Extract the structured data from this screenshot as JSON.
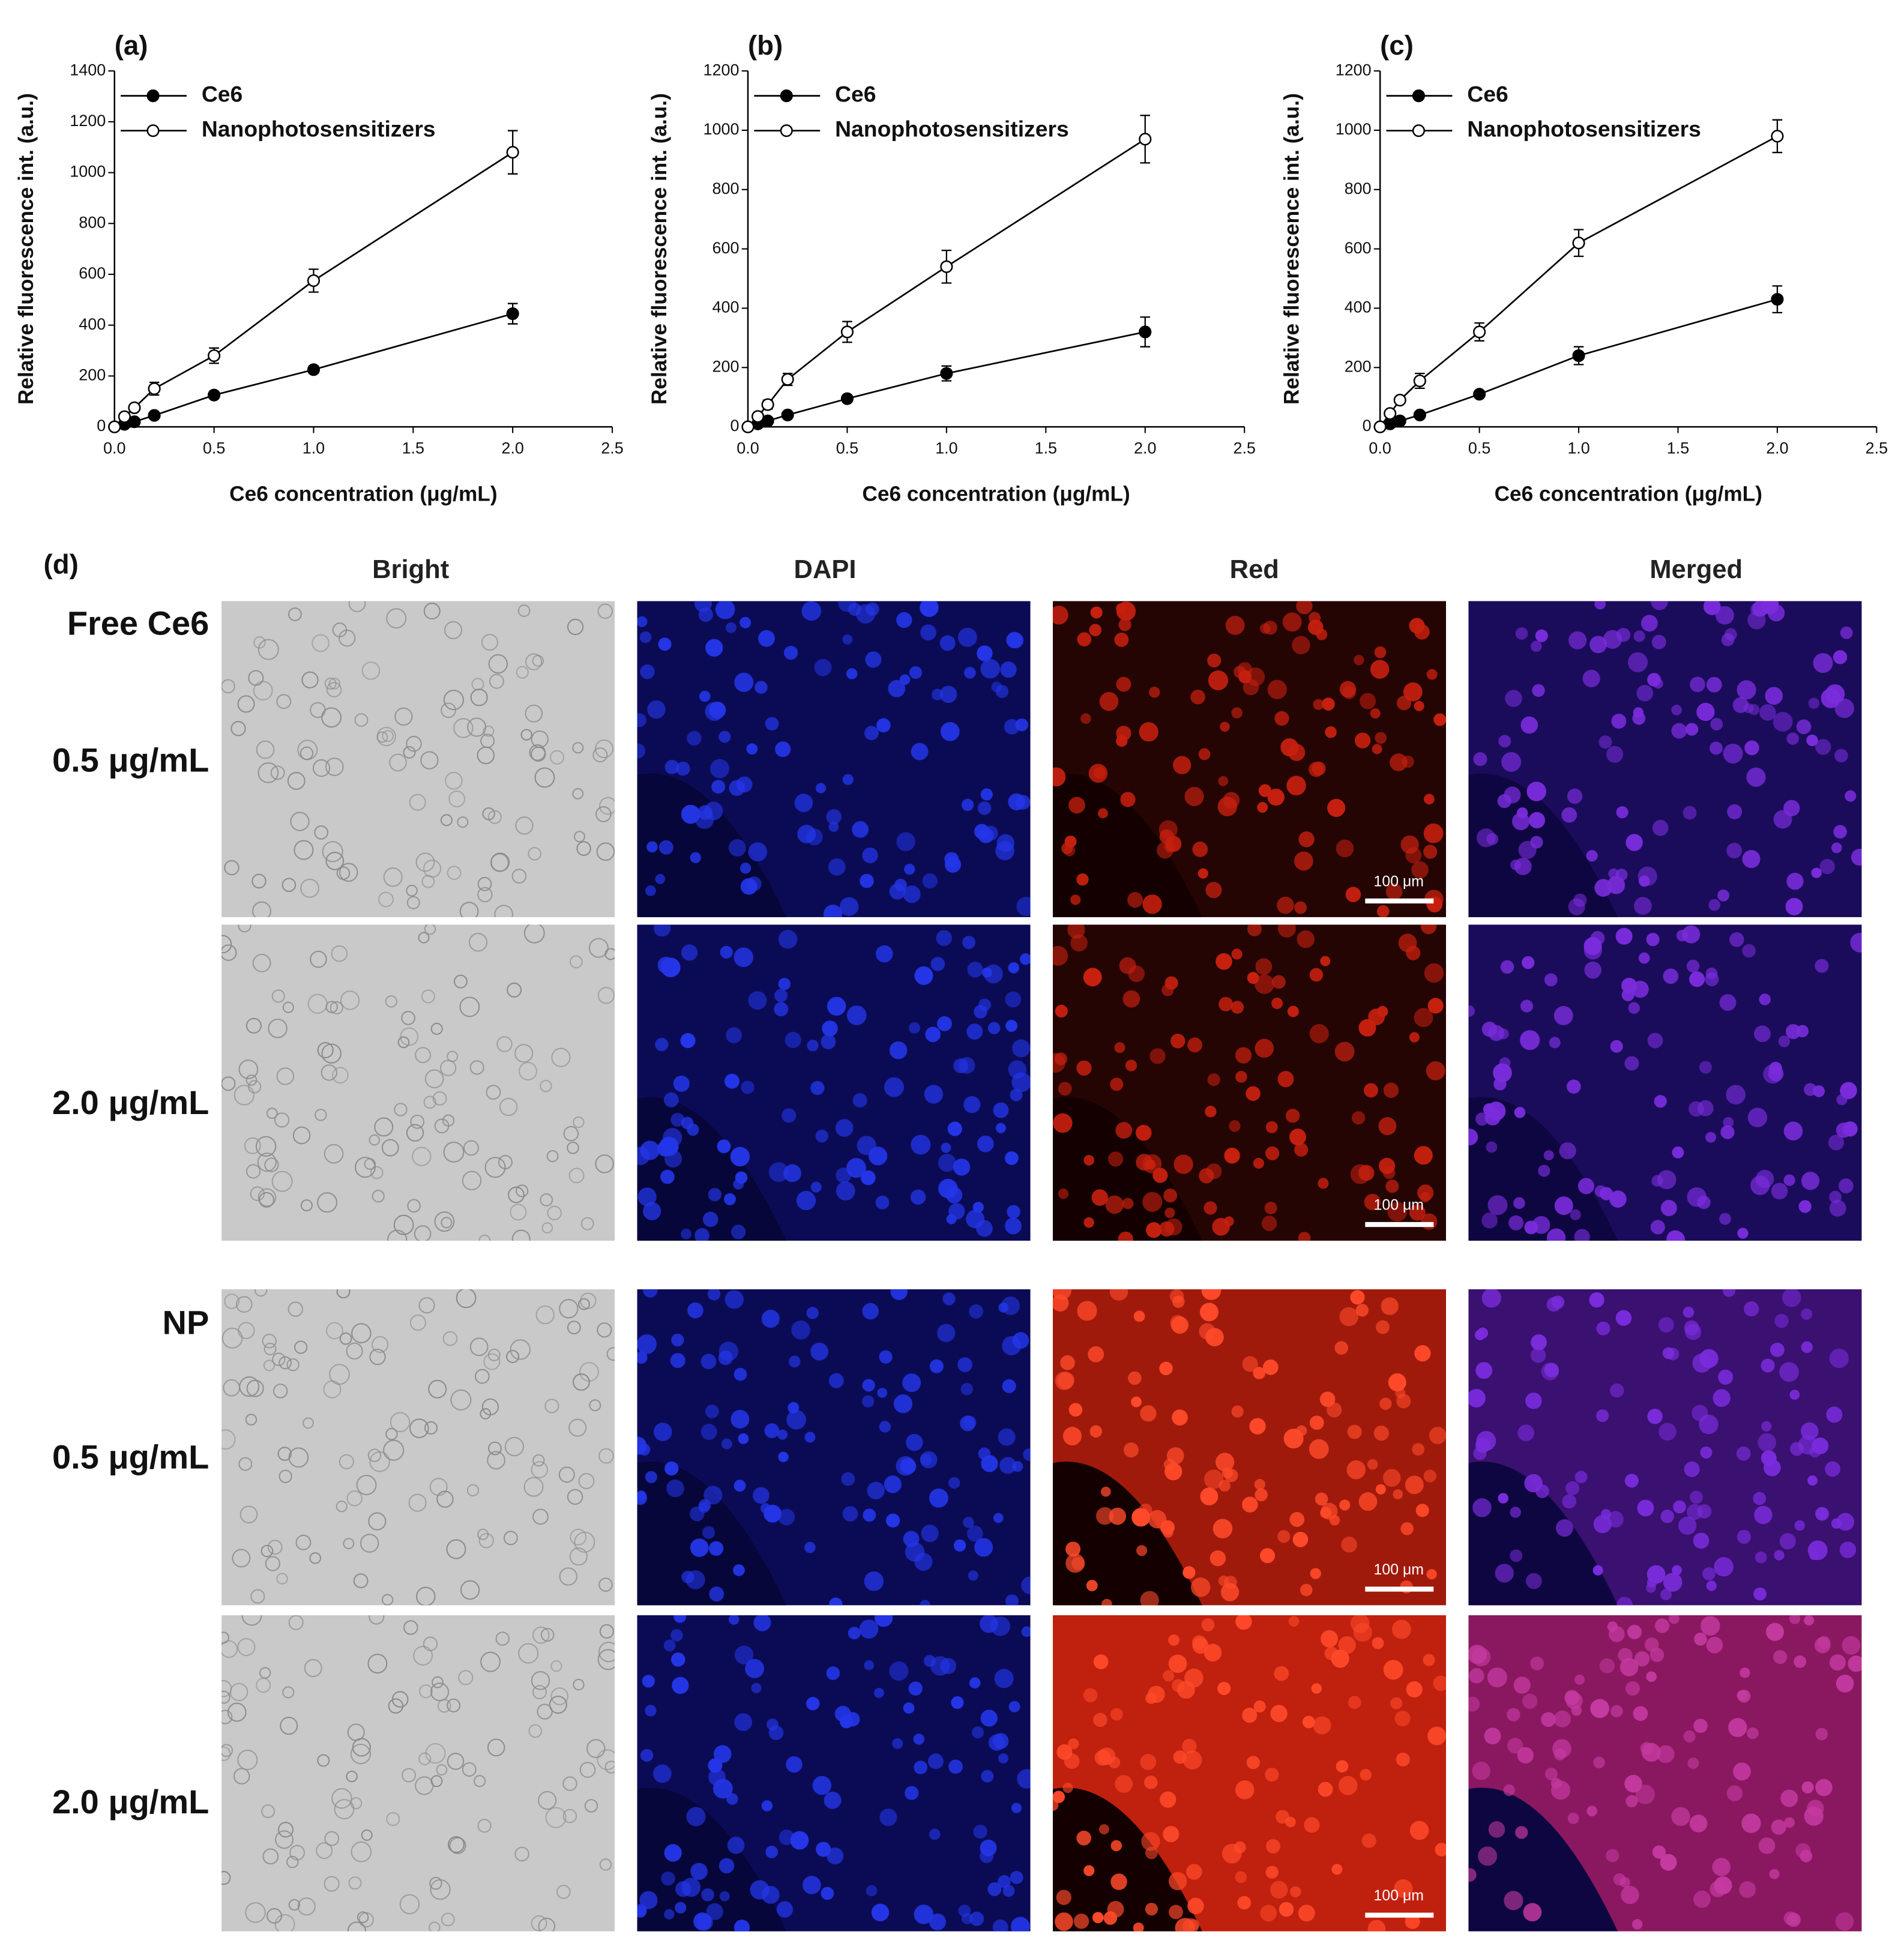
{
  "chart_data": [
    {
      "type": "line",
      "title": "(a)",
      "xlabel": "Ce6 concentration (μg/mL)",
      "ylabel": "Relative fluorescence int. (a.u.)",
      "legend": "upper left",
      "x": [
        0,
        0.05,
        0.1,
        0.2,
        0.5,
        1,
        2
      ],
      "xlim": [
        0,
        2.5
      ],
      "xticks": [
        {
          "value": 0,
          "label": "0.0"
        },
        0.5,
        {
          "value": 1,
          "label": "1.0"
        },
        1.5,
        {
          "value": 2,
          "label": "2.0"
        },
        2.5
      ],
      "ylim": [
        0,
        1400
      ],
      "yticks": [
        0,
        200,
        400,
        600,
        800,
        1000,
        1200,
        1400
      ],
      "series": [
        {
          "name": "Ce6",
          "color": "#000000",
          "marker": "filled",
          "values": [
            0,
            10,
            20,
            45,
            125,
            225,
            445
          ],
          "errors": [
            0,
            5,
            5,
            8,
            10,
            15,
            40
          ]
        },
        {
          "name": "Nanophotosensitizers",
          "color": "#000000",
          "marker": "open",
          "values": [
            0,
            40,
            75,
            150,
            280,
            575,
            1080
          ],
          "errors": [
            0,
            10,
            12,
            25,
            30,
            45,
            85
          ]
        }
      ]
    },
    {
      "type": "line",
      "title": "(b)",
      "xlabel": "Ce6 concentration (μg/mL)",
      "ylabel": "Relative fluorescence int. (a.u.)",
      "legend": "upper left",
      "x": [
        0,
        0.05,
        0.1,
        0.2,
        0.5,
        1,
        2
      ],
      "xlim": [
        0,
        2.5
      ],
      "xticks": [
        {
          "value": 0,
          "label": "0.0"
        },
        0.5,
        {
          "value": 1,
          "label": "1.0"
        },
        1.5,
        {
          "value": 2,
          "label": "2.0"
        },
        2.5
      ],
      "ylim": [
        0,
        1200
      ],
      "yticks": [
        0,
        200,
        400,
        600,
        800,
        1000,
        1200
      ],
      "series": [
        {
          "name": "Ce6",
          "color": "#000000",
          "marker": "filled",
          "values": [
            0,
            10,
            20,
            40,
            95,
            180,
            320
          ],
          "errors": [
            0,
            5,
            5,
            8,
            10,
            25,
            50
          ]
        },
        {
          "name": "Nanophotosensitizers",
          "color": "#000000",
          "marker": "open",
          "values": [
            0,
            35,
            75,
            160,
            320,
            540,
            970
          ],
          "errors": [
            0,
            10,
            15,
            20,
            35,
            55,
            80
          ]
        }
      ]
    },
    {
      "type": "line",
      "title": "(c)",
      "xlabel": "Ce6 concentration (μg/mL)",
      "ylabel": "Relative fluorescence int. (a.u.)",
      "legend": "upper left",
      "x": [
        0,
        0.05,
        0.1,
        0.2,
        0.5,
        1,
        2
      ],
      "xlim": [
        0,
        2.5
      ],
      "xticks": [
        {
          "value": 0,
          "label": "0.0"
        },
        0.5,
        {
          "value": 1,
          "label": "1.0"
        },
        1.5,
        {
          "value": 2,
          "label": "2.0"
        },
        2.5
      ],
      "ylim": [
        0,
        1200
      ],
      "yticks": [
        0,
        200,
        400,
        600,
        800,
        1000,
        1200
      ],
      "series": [
        {
          "name": "Ce6",
          "color": "#000000",
          "marker": "filled",
          "values": [
            0,
            10,
            20,
            40,
            110,
            240,
            430
          ],
          "errors": [
            0,
            5,
            5,
            8,
            10,
            30,
            45
          ]
        },
        {
          "name": "Nanophotosensitizers",
          "color": "#000000",
          "marker": "open",
          "values": [
            0,
            45,
            90,
            155,
            320,
            620,
            980
          ],
          "errors": [
            0,
            10,
            10,
            25,
            30,
            45,
            55
          ]
        }
      ]
    }
  ],
  "panel_d": {
    "label": "(d)",
    "columns": [
      "Bright",
      "DAPI",
      "Red",
      "Merged"
    ],
    "groups": [
      {
        "label": "Free Ce6",
        "rows": [
          "0.5 μg/mL",
          "2.0 μg/mL"
        ]
      },
      {
        "label": "NP",
        "rows": [
          "0.5 μg/mL",
          "2.0 μg/mL"
        ]
      }
    ],
    "scale_bars": [
      "100 μm",
      "100 μm",
      "100 μm",
      "100 μm"
    ]
  }
}
